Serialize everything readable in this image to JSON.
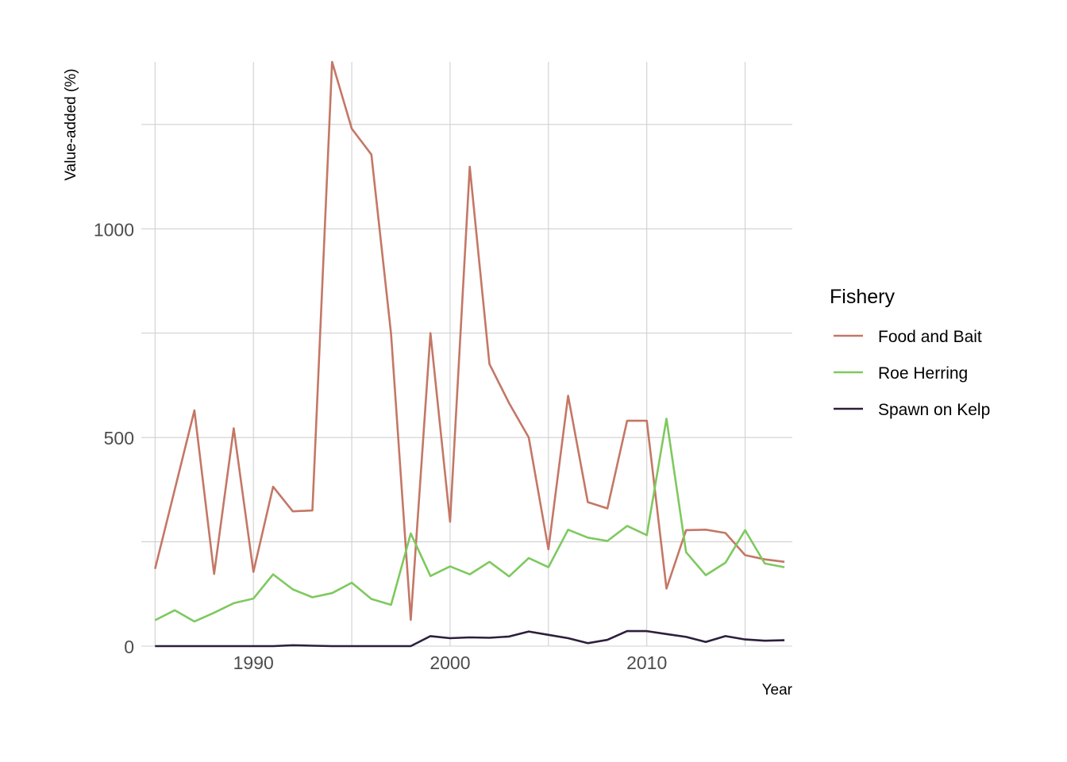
{
  "chart_data": {
    "type": "line",
    "xlabel": "Year",
    "ylabel": "Value-added (%)",
    "xlim": [
      1984.3,
      2017.4
    ],
    "ylim": [
      0,
      1400
    ],
    "x_ticks": [
      1990,
      2000,
      2010
    ],
    "x_tick_labels": [
      "1990",
      "2000",
      "2010"
    ],
    "y_ticks": [
      0,
      500,
      1000
    ],
    "y_tick_labels": [
      "0",
      "500",
      "1000"
    ],
    "grid": true,
    "legend": {
      "title": "Fishery",
      "position": "right"
    },
    "x": [
      1985,
      1986,
      1987,
      1988,
      1989,
      1990,
      1991,
      1992,
      1993,
      1994,
      1995,
      1996,
      1997,
      1998,
      1999,
      2000,
      2001,
      2002,
      2003,
      2004,
      2005,
      2006,
      2007,
      2008,
      2009,
      2010,
      2011,
      2012,
      2013,
      2014,
      2015,
      2016,
      2017
    ],
    "series": [
      {
        "name": "Food and Bait",
        "color": "#c47766",
        "values": [
          185,
          375,
          565,
          173,
          522,
          178,
          382,
          323,
          325,
          1400,
          1240,
          1178,
          748,
          63,
          750,
          298,
          1149,
          676,
          582,
          500,
          232,
          600,
          345,
          330,
          540,
          540,
          138,
          278,
          279,
          271,
          218,
          208,
          202
        ]
      },
      {
        "name": "Roe Herring",
        "color": "#7ec95f",
        "values": [
          62,
          86,
          59,
          80,
          103,
          114,
          172,
          136,
          117,
          127,
          152,
          113,
          99,
          270,
          168,
          191,
          172,
          202,
          167,
          211,
          189,
          279,
          260,
          252,
          288,
          266,
          545,
          225,
          170,
          200,
          278,
          198,
          189
        ]
      },
      {
        "name": "Spawn on Kelp",
        "color": "#2c1f3d",
        "values": [
          0,
          0,
          0,
          0,
          0,
          0,
          0,
          2,
          1,
          0,
          0,
          0,
          0,
          0,
          24,
          19,
          21,
          20,
          23,
          35,
          27,
          19,
          7,
          15,
          36,
          36,
          29,
          22,
          10,
          24,
          16,
          13,
          14
        ]
      }
    ]
  }
}
